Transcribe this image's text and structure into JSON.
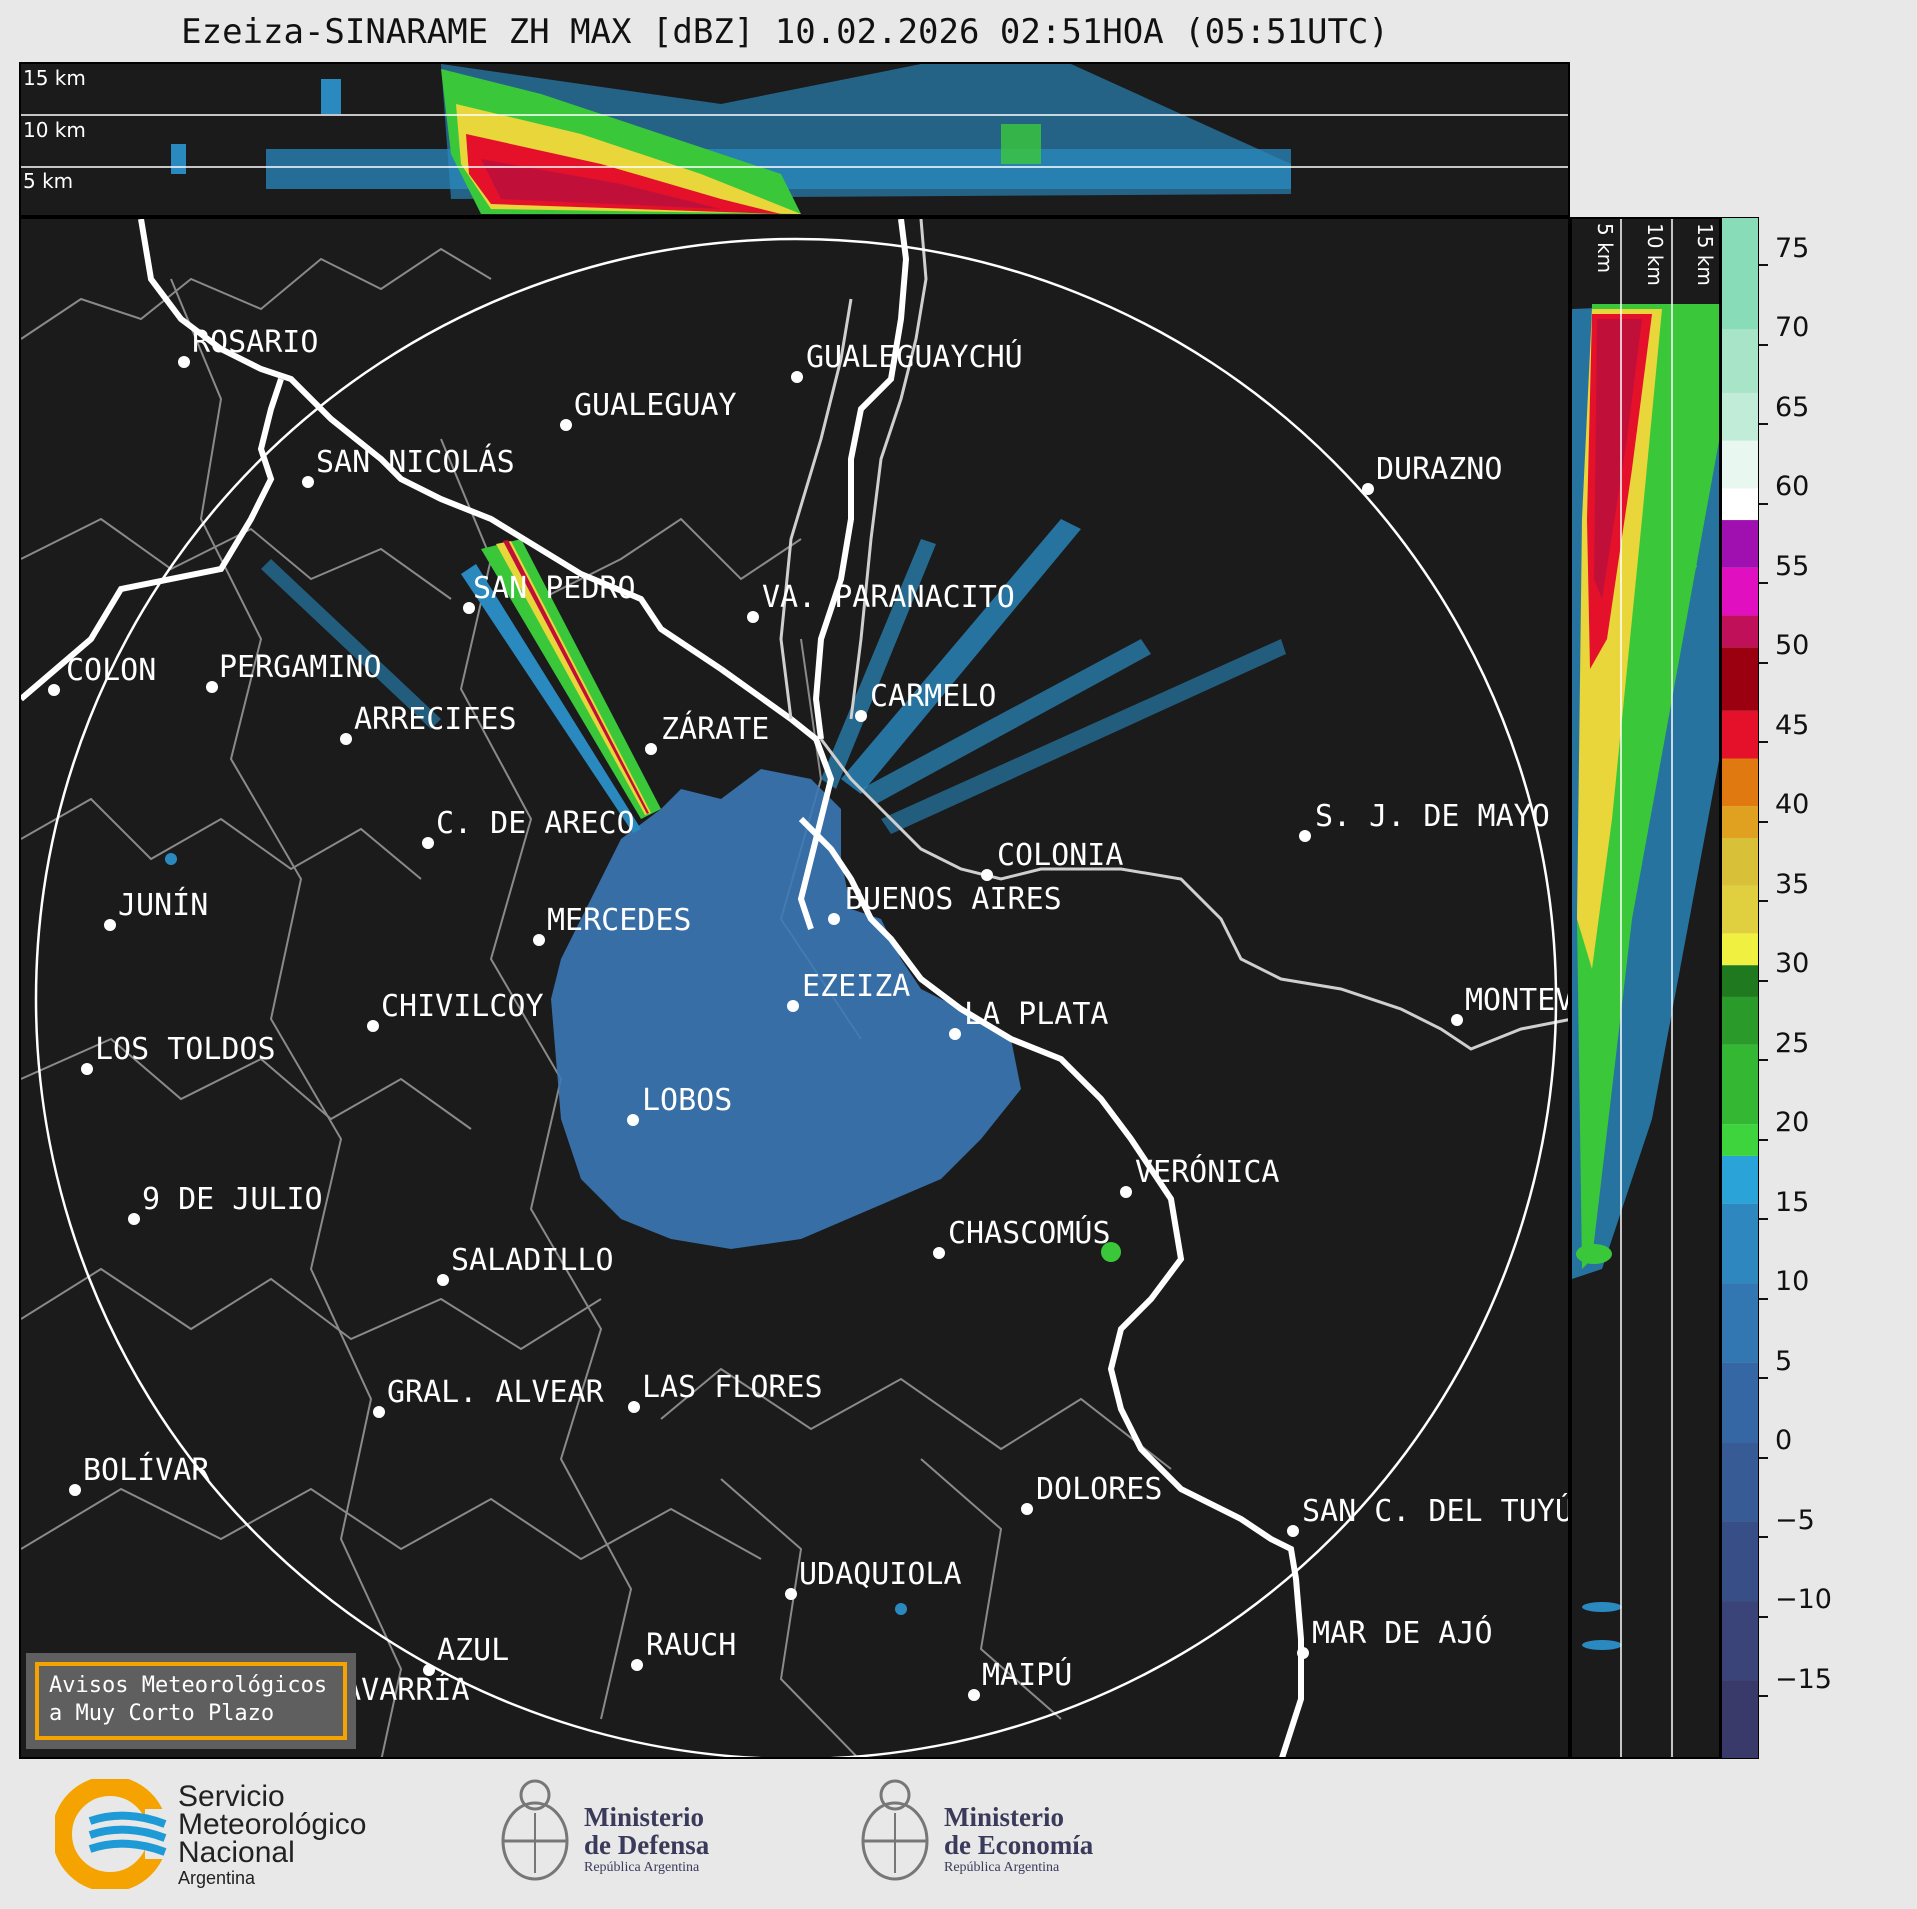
{
  "title": "Ezeiza-SINARAME ZH MAX [dBZ] 10.02.2026 02:51HOA (05:51UTC)",
  "top_profile": {
    "altitude_labels": [
      "15 km",
      "10 km",
      "5 km"
    ]
  },
  "side_profile": {
    "altitude_labels": [
      "5 km",
      "10 km",
      "15 km"
    ]
  },
  "colorbar": {
    "unit": "dBZ",
    "ticks": [
      "75",
      "70",
      "65",
      "60",
      "55",
      "50",
      "45",
      "40",
      "35",
      "30",
      "25",
      "20",
      "15",
      "10",
      "5",
      "0",
      "−5",
      "−10",
      "−15"
    ]
  },
  "cities": {
    "rosario": "ROSARIO",
    "gualeguaychu": "GUALEGUAYCHÚ",
    "gualeguay": "GUALEGUAY",
    "san_nicolas": "SAN NICOLÁS",
    "durazno": "DURAZNO",
    "san_pedro": "SAN PEDRO",
    "villa_paranacito": "VA. PARANACITO",
    "colon": "COLON",
    "pergamino": "PERGAMINO",
    "carmelo": "CARMELO",
    "arrecifes": "ARRECIFES",
    "zarate": "ZÁRATE",
    "s_j_de_mayo": "S. J. DE MAYO",
    "c_de_areco": "C. DE ARECO",
    "colonia": "COLONIA",
    "junin": "JUNÍN",
    "buenos_aires": "BUENOS AIRES",
    "mercedes": "MERCEDES",
    "ezeiza": "EZEIZA",
    "montevideo": "MONTEVIDEO",
    "chivilcoy": "CHIVILCOY",
    "la_plata": "LA PLATA",
    "los_toldos": "LOS TOLDOS",
    "lobos": "LOBOS",
    "veronica": "VERÓNICA",
    "nueve_de_julio": "9 DE JULIO",
    "chascomus": "CHASCOMÚS",
    "saladillo": "SALADILLO",
    "gral_alvear": "GRAL. ALVEAR",
    "las_flores": "LAS FLORES",
    "bolivar": "BOLÍVAR",
    "dolores": "DOLORES",
    "san_c_del_tuyu": "SAN C. DEL TUYÚ",
    "udaquiola": "UDAQUIOLA",
    "mar_de_ajo": "MAR DE AJÓ",
    "azul": "AZUL",
    "rauch": "RAUCH",
    "maipu": "MAIPÚ",
    "olavarria": "OLAVARRÍA"
  },
  "aviso": {
    "line1": "Avisos Meteorológicos",
    "line2": "a Muy Corto Plazo"
  },
  "logos": {
    "smn": {
      "line1": "Servicio",
      "line2": "Meteorológico",
      "line3": "Nacional",
      "line4": "Argentina",
      "accent": "#f5a300",
      "blue": "#1e9ad6"
    },
    "defensa": {
      "line1": "Ministerio",
      "line2": "de Defensa",
      "line3": "República Argentina"
    },
    "economia": {
      "line1": "Ministerio",
      "line2": "de Economía",
      "line3": "República Argentina"
    }
  }
}
